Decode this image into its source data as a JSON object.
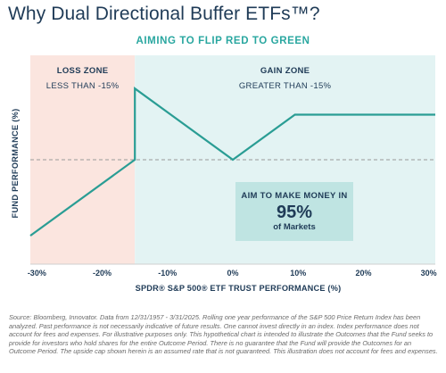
{
  "title": "Why Dual Directional Buffer ETFs™?",
  "subtitle": "AIMING TO FLIP RED TO GREEN",
  "chart_data": {
    "type": "line",
    "xlabel": "SPDR® S&P 500® ETF TRUST PERFORMANCE (%)",
    "ylabel": "FUND PERFORMANCE (%)",
    "xlim": [
      -31,
      31
    ],
    "x_ticks": [
      "-30%",
      "-20%",
      "-10%",
      "0%",
      "10%",
      "20%",
      "30%"
    ],
    "x_tick_values": [
      -30,
      -20,
      -10,
      0,
      10,
      20,
      30
    ],
    "series": [
      {
        "x": [
          -31,
          -15,
          -15,
          0,
          9.5,
          31
        ],
        "y": [
          -16,
          0,
          15,
          0,
          9.5,
          9.5
        ]
      }
    ],
    "ylim": [
      -22,
      22
    ],
    "baseline_y": 0,
    "zones": [
      {
        "label": "LOSS ZONE",
        "sublabel": "LESS THAN -15%",
        "from": -31,
        "to": -15,
        "color": "#fbe5df"
      },
      {
        "label": "GAIN ZONE",
        "sublabel": "GREATER THAN -15%",
        "from": -15,
        "to": 31,
        "color": "#e3f3f3"
      }
    ],
    "callout": {
      "line1": "AIM TO MAKE MONEY IN",
      "value": "95%",
      "line3": "of Markets"
    },
    "line_color": "#2a9d94"
  },
  "footnote": "Source: Bloomberg, Innovator. Data from 12/31/1957 - 3/31/2025. Rolling one year performance of the S&P 500 Price Return Index has been analyzed. Past performance is not necessarily indicative of future results. One cannot invest directly in an index. Index performance does not account for fees and expenses. For illustrative purposes only. This hypothetical chart is intended to illustrate the Outcomes that the Fund seeks to provide for investors who hold shares for the entire Outcome Period. There is no guarantee that the Fund will provide the Outcomes for an Outcome Period. The upside cap shown herein is an assumed rate that is not guaranteed. This illustration does not account for fees and expenses."
}
